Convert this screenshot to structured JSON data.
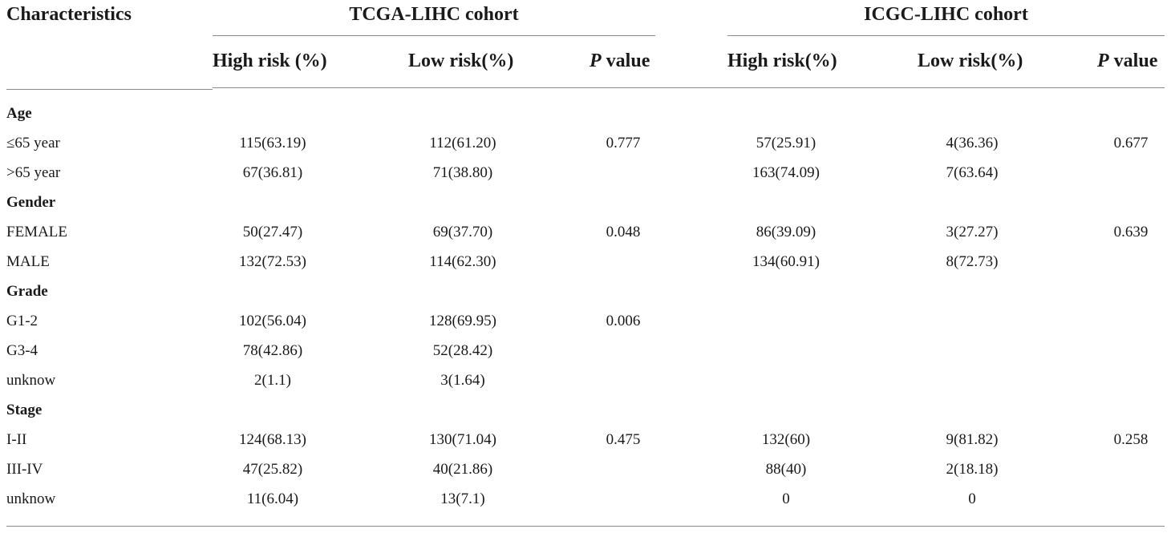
{
  "header": {
    "characteristics": "Characteristics",
    "group1": "TCGA-LIHC cohort",
    "group2": "ICGC-LIHC cohort",
    "cols": {
      "g1_high": "High risk (%)",
      "g1_low": "Low risk(%)",
      "g1_p_letter": "P",
      "g1_p_rest": " value",
      "g2_high": "High risk(%)",
      "g2_low": "Low risk(%)",
      "g2_p_letter": "P",
      "g2_p_rest": " value"
    }
  },
  "sections": {
    "age": "Age",
    "gender": "Gender",
    "grade": "Grade",
    "stage": "Stage"
  },
  "rows": {
    "age_le65": {
      "label": "≤65 year",
      "t_high": "115(63.19)",
      "t_low": "112(61.20)",
      "t_p": "0.777",
      "i_high": "57(25.91)",
      "i_low": "4(36.36)",
      "i_p": "0.677"
    },
    "age_gt65": {
      "label": ">65 year",
      "t_high": "67(36.81)",
      "t_low": "71(38.80)",
      "t_p": "",
      "i_high": "163(74.09)",
      "i_low": "7(63.64)",
      "i_p": ""
    },
    "female": {
      "label": "FEMALE",
      "t_high": "50(27.47)",
      "t_low": "69(37.70)",
      "t_p": "0.048",
      "i_high": "86(39.09)",
      "i_low": "3(27.27)",
      "i_p": "0.639"
    },
    "male": {
      "label": "MALE",
      "t_high": "132(72.53)",
      "t_low": "114(62.30)",
      "t_p": "",
      "i_high": "134(60.91)",
      "i_low": "8(72.73)",
      "i_p": ""
    },
    "g12": {
      "label": "G1-2",
      "t_high": "102(56.04)",
      "t_low": "128(69.95)",
      "t_p": "0.006",
      "i_high": "",
      "i_low": "",
      "i_p": ""
    },
    "g34": {
      "label": "G3-4",
      "t_high": "78(42.86)",
      "t_low": "52(28.42)",
      "t_p": "",
      "i_high": "",
      "i_low": "",
      "i_p": ""
    },
    "grade_unknow": {
      "label": "unknow",
      "t_high": "2(1.1)",
      "t_low": "3(1.64)",
      "t_p": "",
      "i_high": "",
      "i_low": "",
      "i_p": ""
    },
    "s12": {
      "label": "I-II",
      "t_high": "124(68.13)",
      "t_low": "130(71.04)",
      "t_p": "0.475",
      "i_high": "132(60)",
      "i_low": "9(81.82)",
      "i_p": "0.258"
    },
    "s34": {
      "label": "III-IV",
      "t_high": "47(25.82)",
      "t_low": "40(21.86)",
      "t_p": "",
      "i_high": "88(40)",
      "i_low": "2(18.18)",
      "i_p": ""
    },
    "stage_unknow": {
      "label": "unknow",
      "t_high": "11(6.04)",
      "t_low": "13(7.1)",
      "t_p": "",
      "i_high": "0",
      "i_low": "0",
      "i_p": ""
    }
  }
}
